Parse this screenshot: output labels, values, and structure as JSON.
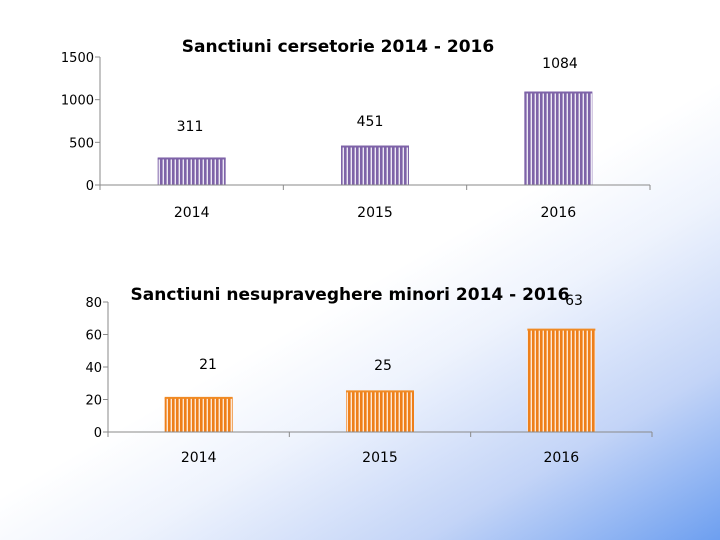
{
  "chart_data": [
    {
      "type": "bar",
      "title": "Sanctiuni  cersetorie 2014 - 2016",
      "categories": [
        "2014",
        "2015",
        "2016"
      ],
      "values": [
        311,
        451,
        1084
      ],
      "ylim": [
        0,
        1500
      ],
      "yticks": [
        0,
        500,
        1000,
        1500
      ],
      "xlabel": "",
      "ylabel": "",
      "grid": false,
      "legend": "none",
      "bar_color": "#7e63a8"
    },
    {
      "type": "bar",
      "title": "Sanctiuni  nesupraveghere  minori 2014 - 2016",
      "categories": [
        "2014",
        "2015",
        "2016"
      ],
      "values": [
        21,
        25,
        63
      ],
      "ylim": [
        0,
        80
      ],
      "yticks": [
        0,
        20,
        40,
        60,
        80
      ],
      "xlabel": "",
      "ylabel": "",
      "grid": false,
      "legend": "none",
      "bar_color": "#f08a24"
    }
  ]
}
